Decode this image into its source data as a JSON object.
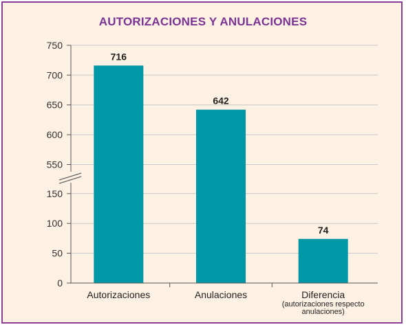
{
  "chart_data": {
    "type": "bar",
    "title": "AUTORIZACIONES Y ANULACIONES",
    "categories": [
      "Autorizaciones",
      "Anulaciones",
      "Diferencia"
    ],
    "category_sublabels": [
      "",
      "",
      "(autorizaciones respecto anulaciones)"
    ],
    "values": [
      716,
      642,
      74
    ],
    "data_labels": [
      "716",
      "642",
      "74"
    ],
    "axis_break": true,
    "y_ticks": [
      "0",
      "50",
      "100",
      "150",
      "550",
      "600",
      "650",
      "700",
      "750"
    ],
    "xlabel": "",
    "ylabel": "",
    "grid": true,
    "colors": {
      "bar": "#0097a7",
      "title": "#7b3394",
      "border": "#8e3d97",
      "background": "#fdf1e3",
      "grid": "#c8c8c8"
    }
  }
}
